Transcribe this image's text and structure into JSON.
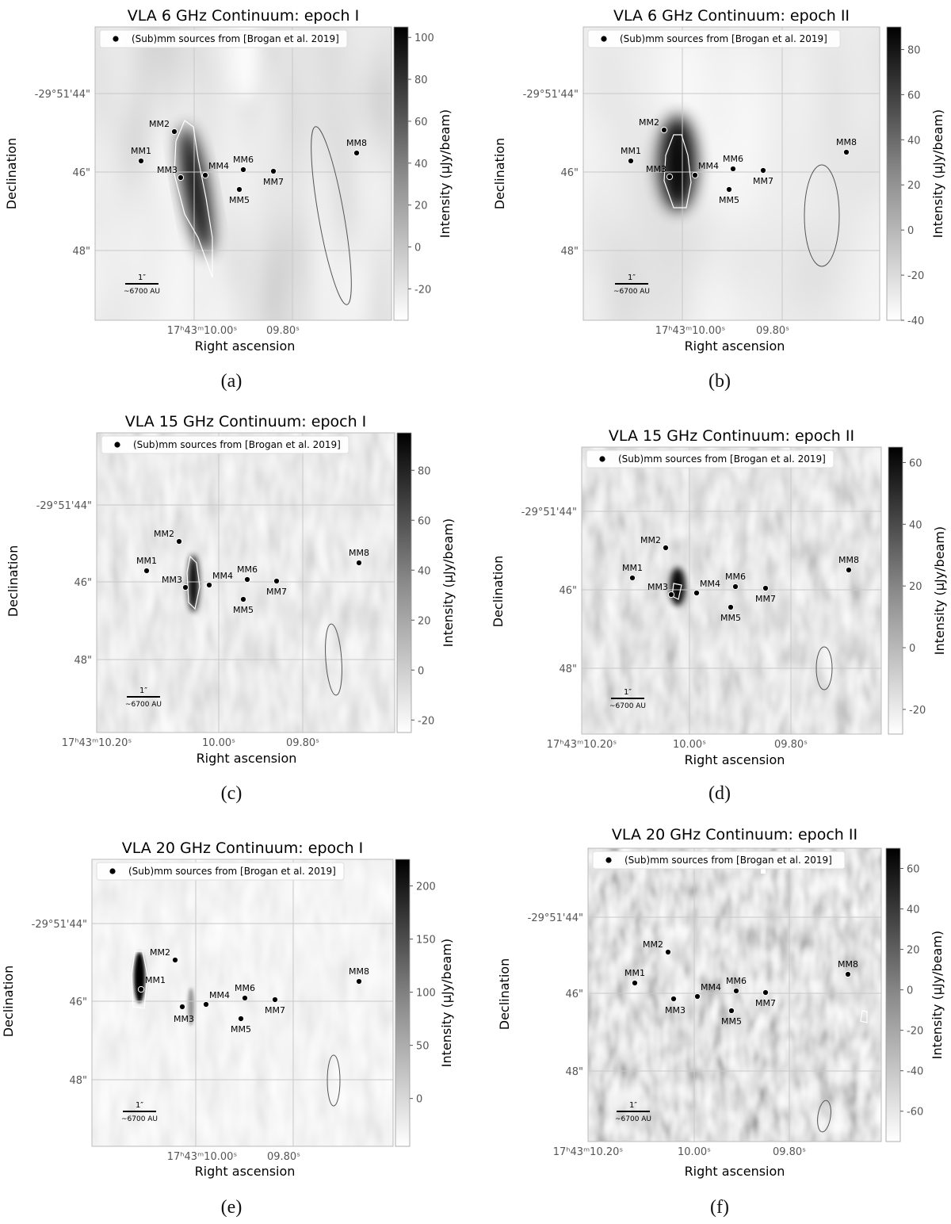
{
  "panels": [
    {
      "id": "a",
      "title": "VLA 6 GHz Continuum: epoch I",
      "caption": "(a)",
      "legend": "(Sub)mm sources from [Brogan et al. 2019]",
      "xlabel": "Right ascension",
      "ylabel": "Declination",
      "cbar_label": "Intensity (μJy/beam)",
      "xticks": [
        "17ʰ43ᵐ10.00ˢ",
        "09.80ˢ"
      ],
      "yticks": [
        "-29°51'44\"",
        "46\"",
        "48\""
      ],
      "cbar_ticks": [
        "100",
        "80",
        "60",
        "40",
        "20",
        "0",
        "-20"
      ],
      "scalebar": [
        "1″",
        "~6700 AU"
      ]
    },
    {
      "id": "b",
      "title": "VLA 6 GHz Continuum: epoch II",
      "caption": "(b)",
      "legend": "(Sub)mm sources from [Brogan et al. 2019]",
      "xlabel": "Right ascension",
      "ylabel": "Declination",
      "cbar_label": "Intensity (μJy/beam)",
      "xticks": [
        "17ʰ43ᵐ10.00ˢ",
        "09.80ˢ"
      ],
      "yticks": [
        "-29°51'44\"",
        "46\"",
        "48\""
      ],
      "cbar_ticks": [
        "80",
        "60",
        "40",
        "20",
        "0",
        "-20",
        "-40"
      ],
      "scalebar": [
        "1″",
        "~6700 AU"
      ]
    },
    {
      "id": "c",
      "title": "VLA 15 GHz Continuum: epoch I",
      "caption": "(c)",
      "legend": "(Sub)mm sources from [Brogan et al. 2019]",
      "xlabel": "Right ascension",
      "ylabel": "Declination",
      "cbar_label": "Intensity (μJy/beam)",
      "xticks": [
        "17ʰ43ᵐ10.20ˢ",
        "10.00ˢ",
        "09.80ˢ"
      ],
      "yticks": [
        "-29°51'44\"",
        "46\"",
        "48\""
      ],
      "cbar_ticks": [
        "80",
        "60",
        "40",
        "20",
        "0",
        "-20"
      ],
      "scalebar": [
        "1″",
        "~6700 AU"
      ]
    },
    {
      "id": "d",
      "title": "VLA 15 GHz Continuum: epoch II",
      "caption": "(d)",
      "legend": "(Sub)mm sources from [Brogan et al. 2019]",
      "xlabel": "Right ascension",
      "ylabel": "Declination",
      "cbar_label": "Intensity (μJy/beam)",
      "xticks": [
        "17ʰ43ᵐ10.20ˢ",
        "10.00ˢ",
        "09.80ˢ"
      ],
      "yticks": [
        "-29°51'44\"",
        "46\"",
        "48\""
      ],
      "cbar_ticks": [
        "60",
        "40",
        "20",
        "0",
        "-20"
      ],
      "scalebar": [
        "1″",
        "~6700 AU"
      ]
    },
    {
      "id": "e",
      "title": "VLA 20 GHz Continuum: epoch I",
      "caption": "(e)",
      "legend": "(Sub)mm sources from [Brogan et al. 2019]",
      "xlabel": "Right ascension",
      "ylabel": "Declination",
      "cbar_label": "Intensity (μJy/beam)",
      "xticks": [
        "17ʰ43ᵐ10.00ˢ",
        "09.80ˢ"
      ],
      "yticks": [
        "-29°51'44\"",
        "46\"",
        "48\""
      ],
      "cbar_ticks": [
        "200",
        "150",
        "100",
        "50",
        "0"
      ],
      "scalebar": [
        "1″",
        "~6700 AU"
      ]
    },
    {
      "id": "f",
      "title": "VLA 20 GHz Continuum: epoch II",
      "caption": "(f)",
      "legend": "(Sub)mm sources from [Brogan et al. 2019]",
      "xlabel": "Right ascension",
      "ylabel": "Declination",
      "cbar_label": "Intensity (μJy/beam)",
      "xticks": [
        "17ʰ43ᵐ10.20ˢ",
        "10.00ˢ",
        "09.80ˢ"
      ],
      "yticks": [
        "-29°51'44\"",
        "46\"",
        "48\""
      ],
      "cbar_ticks": [
        "60",
        "40",
        "20",
        "0",
        "-20",
        "-40",
        "-60"
      ],
      "scalebar": [
        "1″",
        "~6700 AU"
      ]
    }
  ],
  "chart_data": [
    {
      "type": "heatmap",
      "panel": "a",
      "title": "VLA 6 GHz Continuum: epoch I",
      "xlabel": "Right ascension",
      "ylabel": "Declination",
      "colorbar_range": [
        -30,
        105
      ],
      "colorbar_label": "Intensity (μJy/beam)",
      "sources": [
        "MM1",
        "MM2",
        "MM3",
        "MM4",
        "MM5",
        "MM6",
        "MM7",
        "MM8"
      ],
      "colormap": "gray_r"
    },
    {
      "type": "heatmap",
      "panel": "b",
      "title": "VLA 6 GHz Continuum: epoch II",
      "xlabel": "Right ascension",
      "ylabel": "Declination",
      "colorbar_range": [
        -40,
        90
      ],
      "colorbar_label": "Intensity (μJy/beam)",
      "sources": [
        "MM1",
        "MM2",
        "MM3",
        "MM4",
        "MM5",
        "MM6",
        "MM7",
        "MM8"
      ],
      "colormap": "gray_r"
    },
    {
      "type": "heatmap",
      "panel": "c",
      "title": "VLA 15 GHz Continuum: epoch I",
      "xlabel": "Right ascension",
      "ylabel": "Declination",
      "colorbar_range": [
        -25,
        95
      ],
      "colorbar_label": "Intensity (μJy/beam)",
      "sources": [
        "MM1",
        "MM2",
        "MM3",
        "MM4",
        "MM5",
        "MM6",
        "MM7",
        "MM8"
      ],
      "colormap": "gray_r"
    },
    {
      "type": "heatmap",
      "panel": "d",
      "title": "VLA 15 GHz Continuum: epoch II",
      "xlabel": "Right ascension",
      "ylabel": "Declination",
      "colorbar_range": [
        -28,
        65
      ],
      "colorbar_label": "Intensity (μJy/beam)",
      "sources": [
        "MM1",
        "MM2",
        "MM3",
        "MM4",
        "MM5",
        "MM6",
        "MM7",
        "MM8"
      ],
      "colormap": "gray_r"
    },
    {
      "type": "heatmap",
      "panel": "e",
      "title": "VLA 20 GHz Continuum: epoch I",
      "xlabel": "Right ascension",
      "ylabel": "Declination",
      "colorbar_range": [
        -45,
        225
      ],
      "colorbar_label": "Intensity (μJy/beam)",
      "sources": [
        "MM1",
        "MM2",
        "MM3",
        "MM4",
        "MM5",
        "MM6",
        "MM7",
        "MM8"
      ],
      "colormap": "gray_r"
    },
    {
      "type": "heatmap",
      "panel": "f",
      "title": "VLA 20 GHz Continuum: epoch II",
      "xlabel": "Right ascension",
      "ylabel": "Declination",
      "colorbar_range": [
        -75,
        70
      ],
      "colorbar_label": "Intensity (μJy/beam)",
      "sources": [
        "MM1",
        "MM2",
        "MM3",
        "MM4",
        "MM5",
        "MM6",
        "MM7",
        "MM8"
      ],
      "colormap": "gray_r"
    }
  ]
}
